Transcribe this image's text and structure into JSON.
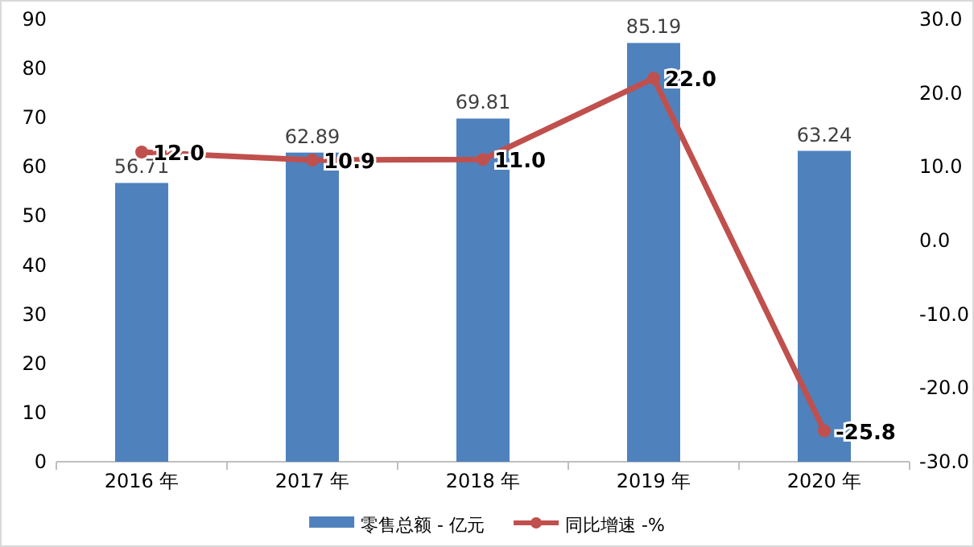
{
  "chart_data": {
    "type": "bar",
    "categories": [
      "2016 年",
      "2017 年",
      "2018 年",
      "2019 年",
      "2020 年"
    ],
    "series": [
      {
        "name": "零售总额 - 亿元",
        "color": "#4f81bd",
        "values": [
          56.71,
          62.89,
          69.81,
          85.19,
          63.24
        ],
        "data_labels": true
      },
      {
        "name": "同比增速 -%",
        "type": "line",
        "axis": "y2",
        "color": "#c0504d",
        "marker": "circle",
        "values": [
          12.0,
          10.9,
          11.0,
          22.0,
          -25.8
        ],
        "value_labels": [
          "12.0",
          "10.9",
          "11.0",
          "22.0",
          "-25.8"
        ]
      }
    ],
    "ylim": [
      0,
      90
    ],
    "yticks": [
      0,
      10,
      20,
      30,
      40,
      50,
      60,
      70,
      80,
      90
    ],
    "y2lim": [
      -30,
      30
    ],
    "y2ticks": [
      {
        "value": -30,
        "label": "-30.0"
      },
      {
        "value": -20,
        "label": "-20.0"
      },
      {
        "value": -10,
        "label": "-10.0"
      },
      {
        "value": 0,
        "label": "0.0"
      },
      {
        "value": 10,
        "label": "10.0"
      },
      {
        "value": 20,
        "label": "20.0"
      },
      {
        "value": 30,
        "label": "30.0"
      }
    ],
    "legend": "bottom"
  }
}
